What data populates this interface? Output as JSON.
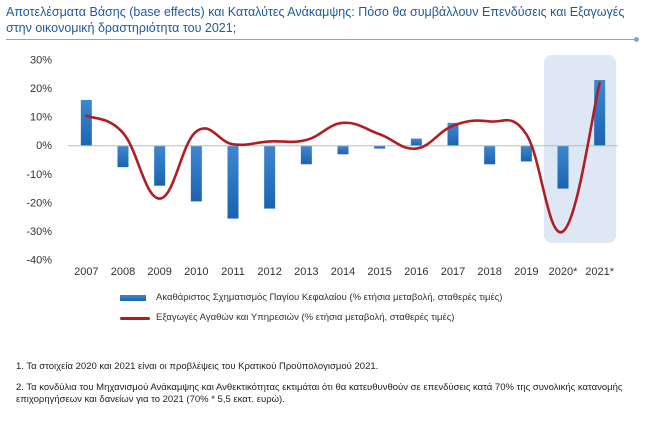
{
  "title": "Αποτελέσματα Βάσης (base effects) και Καταλύτες Ανάκαμψης: Πόσο θα συμβάλλουν Επενδύσεις και Εξαγωγές στην οικονομική δραστηριότητα του 2021;",
  "chart_data": {
    "type": "bar",
    "categories": [
      "2007",
      "2008",
      "2009",
      "2010",
      "2011",
      "2012",
      "2013",
      "2014",
      "2015",
      "2016",
      "2017",
      "2018",
      "2019",
      "2020*",
      "2021*"
    ],
    "ylim": [
      -40,
      30
    ],
    "yticks": [
      "-40%",
      "-30%",
      "-20%",
      "-10%",
      "0%",
      "10%",
      "20%",
      "30%"
    ],
    "grid": false,
    "highlight_categories": [
      "2020*",
      "2021*"
    ],
    "series": [
      {
        "name": "Ακαθάριστος Σχηματισμός Παγίου Κεφαλαίου (% ετήσια μεταβολή, σταθερές τιμές)",
        "kind": "bar",
        "color": "#1b6cc0",
        "values": [
          16,
          -7.5,
          -14,
          -19.5,
          -25.5,
          -22,
          -6.5,
          -3,
          -1,
          2.5,
          8,
          -6.5,
          -5.5,
          -15,
          23
        ]
      },
      {
        "name": "Εξαγωγές Αγαθών και Υπηρεσιών (% ετήσια μεταβολή, σταθερές τιμές)",
        "kind": "line",
        "color": "#b01e24",
        "values": [
          10.5,
          4.5,
          -18.5,
          5,
          0.5,
          1.5,
          2,
          8,
          4,
          -1,
          7,
          8.5,
          4,
          -30,
          22
        ]
      }
    ]
  },
  "notes": [
    "1. Τα στοιχεία 2020 και 2021 είναι οι προβλέψεις του Κρατικού Προϋπολογισμού 2021.",
    "2. Τα κονδύλια του Μηχανισμού Ανάκαμψης και Ανθεκτικότητας εκτιμάται ότι θα κατευθυνθούν σε επενδύσεις κατά 70% της συνολικής κατανομής επιχορηγήσεων και δανείων για το 2021 (70% * 5,5 εκατ. ευρώ)."
  ]
}
